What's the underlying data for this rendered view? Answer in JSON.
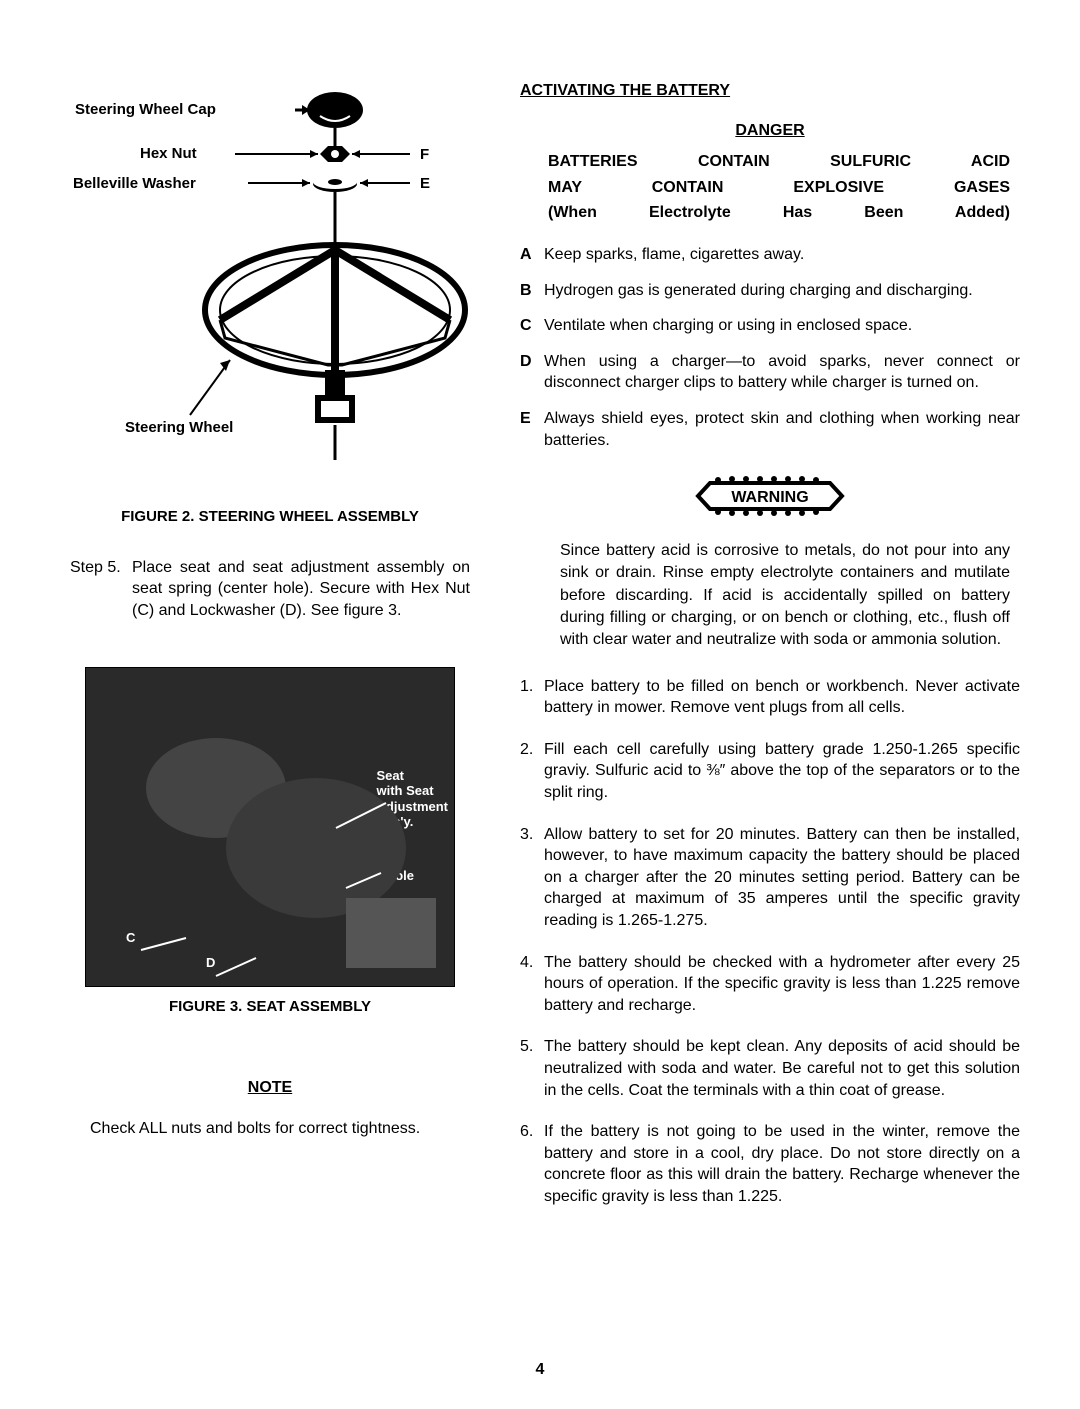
{
  "left": {
    "fig2": {
      "labels": {
        "cap": "Steering Wheel Cap",
        "nut": "Hex Nut",
        "washer": "Belleville Washer",
        "wheel": "Steering Wheel",
        "f": "F",
        "e": "E"
      },
      "caption": "FIGURE 2. STEERING WHEEL ASSEMBLY"
    },
    "step5": {
      "label": "Step 5.",
      "text": "Place seat and seat adjustment assembly on seat spring (center hole). Secure with Hex Nut (C) and Lockwasher (D). See figure 3."
    },
    "fig3": {
      "labels": {
        "seat": "Seat\nwith Seat\nAdjustment\nAss'y.",
        "center": "Center Hole",
        "c": "C",
        "d": "D"
      },
      "caption": "FIGURE 3. SEAT ASSEMBLY"
    },
    "note": {
      "title": "NOTE",
      "text": "Check ALL nuts and bolts for correct tightness."
    }
  },
  "right": {
    "title": "ACTIVATING THE BATTERY",
    "danger": {
      "title": "DANGER",
      "head1": "BATTERIES CONTAIN SULFURIC ACID",
      "head2": "MAY CONTAIN EXPLOSIVE GASES",
      "head3": "(When Electrolyte Has Been Added)",
      "items": [
        {
          "l": "A",
          "t": "Keep sparks, flame, cigarettes away."
        },
        {
          "l": "B",
          "t": "Hydrogen gas is generated during charging and discharging."
        },
        {
          "l": "C",
          "t": "Ventilate when charging or using in enclosed space."
        },
        {
          "l": "D",
          "t": "When using a charger—to avoid sparks, never connect or disconnect charger clips to battery while charger is turned on."
        },
        {
          "l": "E",
          "t": "Always shield eyes, protect skin and clothing when working near batteries."
        }
      ]
    },
    "warning": {
      "label": "WARNING",
      "text": "Since battery acid is corrosive to metals, do not pour into any sink or drain. Rinse empty electrolyte containers and mutilate before discarding. If acid is accidentally spilled on battery during filling or charging, or on bench or clothing, etc., flush off with clear water and neutralize with soda or ammonia solution."
    },
    "steps": [
      "Place battery to be filled on bench or workbench. Never activate battery in mower. Remove vent plugs from all cells.",
      "Fill each cell carefully using battery grade 1.250-1.265 specific graviy. Sulfuric acid to ⅜″ above the top of the separators or to the split ring.",
      "Allow battery to set for 20 minutes. Battery can then be installed, however, to have maximum capacity the battery should be placed on a charger after the 20 minutes setting period. Battery can be charged at maximum of 35 amperes until the specific gravity reading is 1.265-1.275.",
      "The battery should be checked with a hydrometer after every 25 hours of operation. If the specific gravity is less than 1.225 remove battery and recharge.",
      "The battery should be kept clean. Any deposits of acid should be neutralized with soda and water. Be careful not to get this solution in the cells. Coat the terminals with a thin coat of grease.",
      "If the battery is not going to be used in the winter, remove the battery and store in a cool, dry place. Do not store directly on a concrete floor as this will drain the battery. Recharge whenever the specific gravity is less than 1.225."
    ]
  },
  "pageNumber": "4",
  "colors": {
    "text": "#000000",
    "bg": "#ffffff",
    "photo_bg": "#2a2a2a"
  }
}
